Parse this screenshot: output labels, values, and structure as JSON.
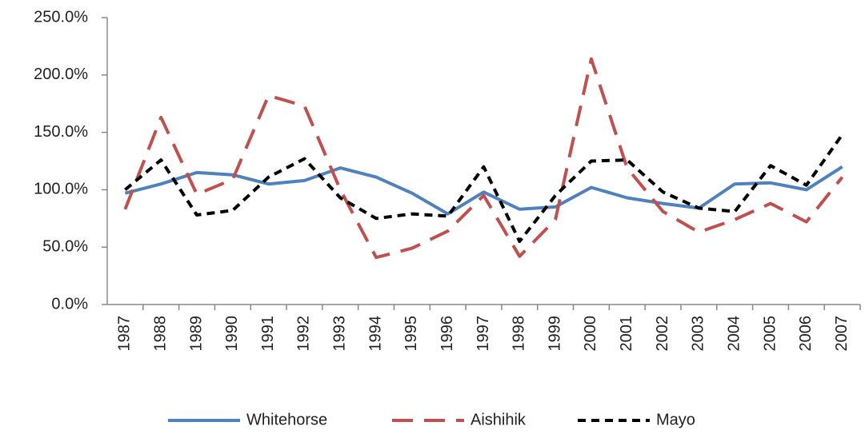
{
  "chart_data": {
    "type": "line",
    "categories": [
      "1987",
      "1988",
      "1989",
      "1990",
      "1991",
      "1992",
      "1993",
      "1994",
      "1995",
      "1996",
      "1997",
      "1998",
      "1999",
      "2000",
      "2001",
      "2002",
      "2003",
      "2004",
      "2005",
      "2006",
      "2007"
    ],
    "series": [
      {
        "name": "Whitehorse",
        "color": "#4f81bd",
        "line_style": "solid",
        "values": [
          97,
          105,
          115,
          113,
          105,
          108,
          119,
          111,
          97,
          79,
          98,
          83,
          85,
          102,
          93,
          88,
          84,
          105,
          106,
          100,
          120
        ]
      },
      {
        "name": "Aishihik",
        "color": "#c0504d",
        "line_style": "long-dash",
        "values": [
          83,
          163,
          96,
          109,
          182,
          173,
          100,
          41,
          49,
          64,
          95,
          42,
          74,
          214,
          119,
          81,
          63,
          74,
          88,
          72,
          111
        ]
      },
      {
        "name": "Mayo",
        "color": "#000000",
        "line_style": "short-dash",
        "values": [
          100,
          126,
          78,
          82,
          111,
          127,
          93,
          75,
          79,
          77,
          120,
          55,
          95,
          125,
          126,
          98,
          84,
          81,
          121,
          104,
          148
        ]
      }
    ],
    "ylim": [
      0,
      250
    ],
    "yticks": [
      {
        "value": 0,
        "label": "0.0%"
      },
      {
        "value": 50,
        "label": "50.0%"
      },
      {
        "value": 100,
        "label": "100.0%"
      },
      {
        "value": 150,
        "label": "150.0%"
      },
      {
        "value": 200,
        "label": "200.0%"
      },
      {
        "value": 250,
        "label": "250.0%"
      }
    ],
    "grid": false,
    "legend": "bottom"
  }
}
